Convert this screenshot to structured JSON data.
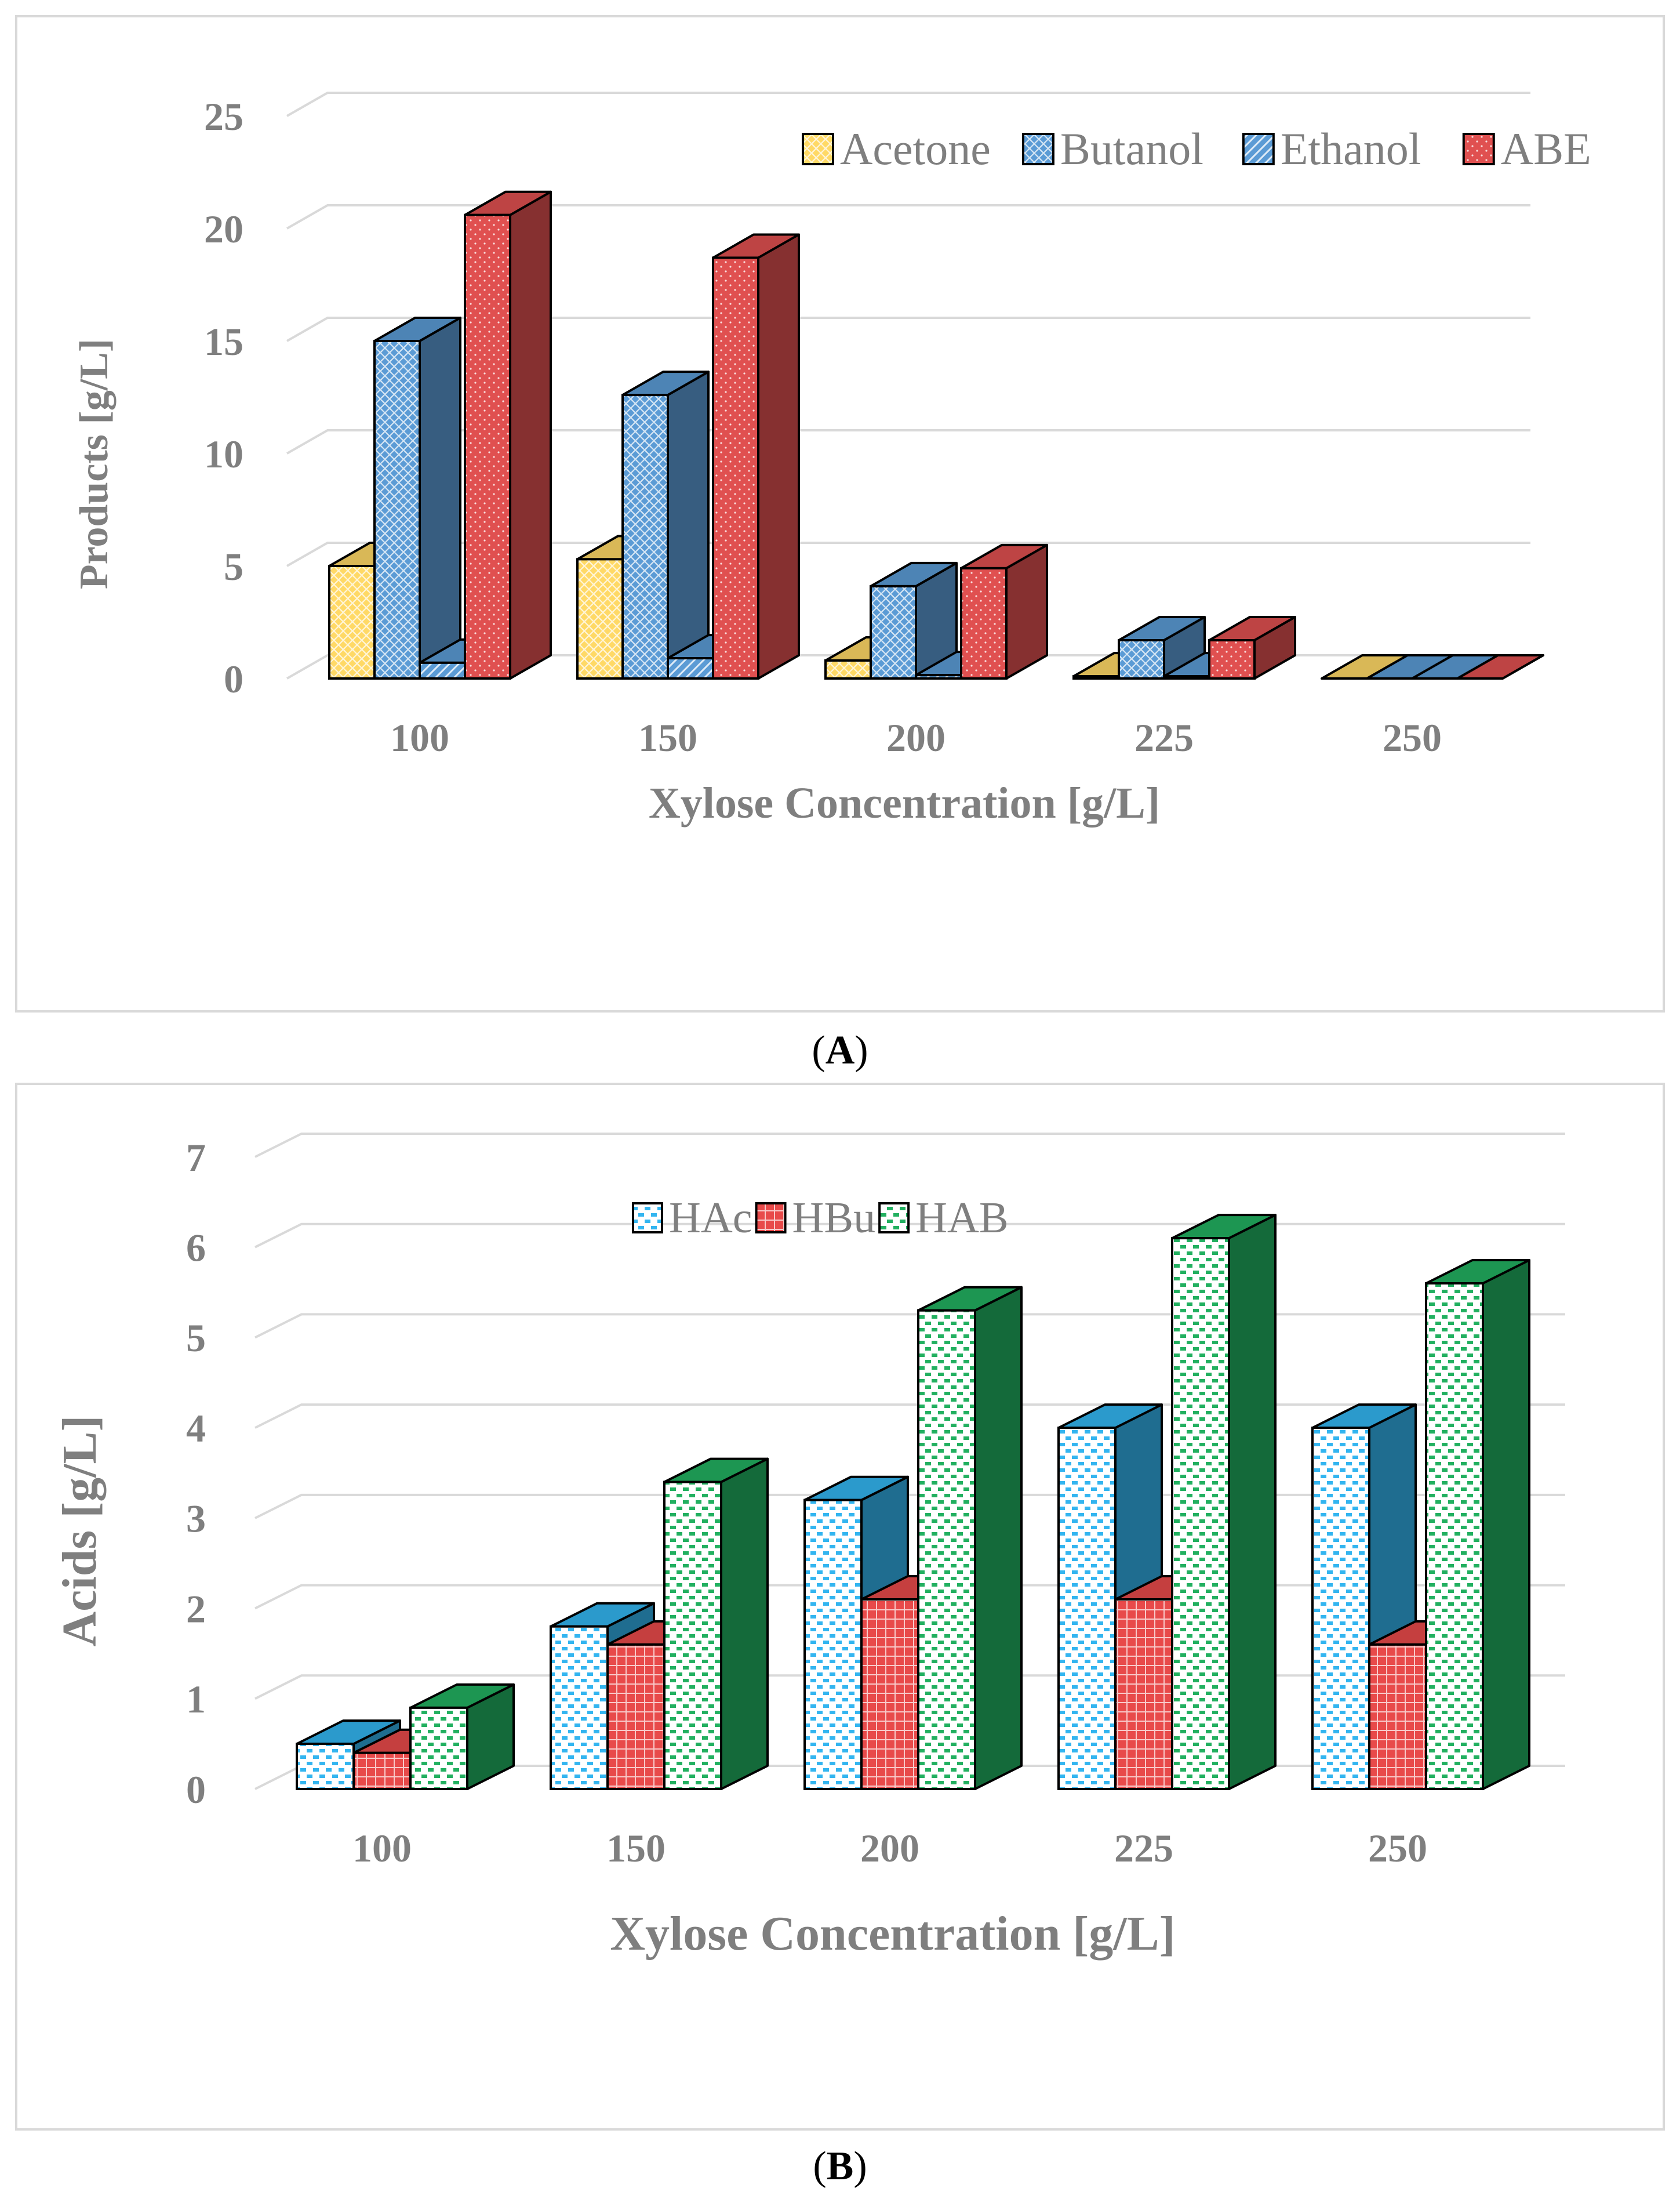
{
  "panels": [
    {
      "id": "A",
      "label": "A",
      "chart_data": {
        "type": "bar",
        "categories": [
          "100",
          "150",
          "200",
          "225",
          "250"
        ],
        "series": [
          {
            "name": "Acetone",
            "values": [
              5.0,
              5.3,
              0.8,
              0.1,
              0.0
            ]
          },
          {
            "name": "Butanol",
            "values": [
              15.0,
              12.6,
              4.1,
              1.7,
              0.0
            ]
          },
          {
            "name": "Ethanol",
            "values": [
              0.7,
              0.9,
              0.15,
              0.1,
              0.0
            ]
          },
          {
            "name": "ABE",
            "values": [
              20.6,
              18.7,
              4.9,
              1.7,
              0.0
            ]
          }
        ],
        "title": "",
        "xlabel": "Xylose Concentration [g/L]",
        "ylabel": "Products [g/L]",
        "ylim": [
          0,
          25
        ],
        "yticks": [
          0,
          5,
          10,
          15,
          20,
          25
        ],
        "grid": true,
        "legend_position": "top-right",
        "style": "3d-clustered-column"
      },
      "colors": [
        "#ffd966",
        "#5b9bd5",
        "#5b9bd5",
        "#e05050"
      ]
    },
    {
      "id": "B",
      "label": "B",
      "chart_data": {
        "type": "bar",
        "categories": [
          "100",
          "150",
          "200",
          "225",
          "250"
        ],
        "series": [
          {
            "name": "HAc",
            "values": [
              0.5,
              1.8,
              3.2,
              4.0,
              4.0
            ]
          },
          {
            "name": "HBu",
            "values": [
              0.4,
              1.6,
              2.1,
              2.1,
              1.6
            ]
          },
          {
            "name": "HAB",
            "values": [
              0.9,
              3.4,
              5.3,
              6.1,
              5.6
            ]
          }
        ],
        "title": "",
        "xlabel": "Xylose Concentration [g/L]",
        "ylabel": "Acids [g/L]",
        "ylim": [
          0,
          7
        ],
        "yticks": [
          0,
          1,
          2,
          3,
          4,
          5,
          6,
          7
        ],
        "grid": true,
        "legend_position": "top-center",
        "style": "3d-clustered-column"
      },
      "colors": [
        "#33b5f0",
        "#e84a4a",
        "#22b060"
      ]
    }
  ]
}
